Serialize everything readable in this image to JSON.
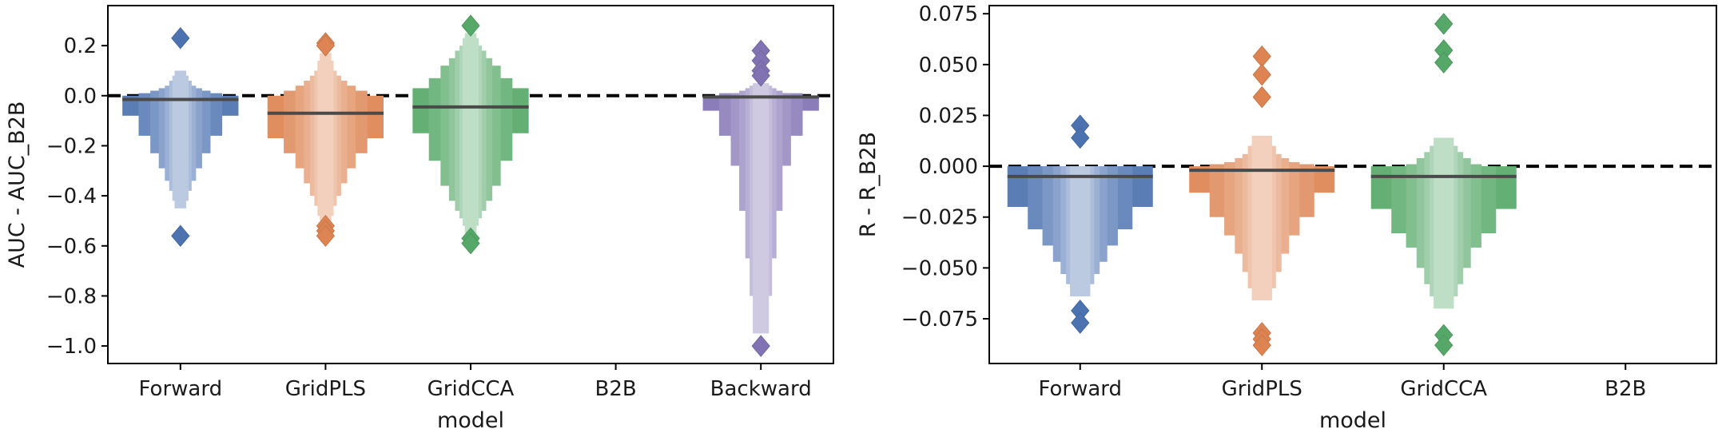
{
  "colors": {
    "Forward": "#4c72b0",
    "GridPLS": "#dd8452",
    "GridCCA": "#55a868",
    "B2B": "#c44e52",
    "Backward": "#8172b3"
  },
  "chart_data": [
    {
      "type": "boxen",
      "ylabel": "AUC - AUC_B2B",
      "xlabel": "model",
      "categories": [
        "Forward",
        "GridPLS",
        "GridCCA",
        "B2B",
        "Backward"
      ],
      "ylim": [
        -1.07,
        0.36
      ],
      "yticks": [
        {
          "value": 0.2,
          "label": "0.2"
        },
        {
          "value": 0.0,
          "label": "0.0"
        },
        {
          "value": -0.2,
          "label": "−0.2"
        },
        {
          "value": -0.4,
          "label": "−0.4"
        },
        {
          "value": -0.6,
          "label": "−0.6"
        },
        {
          "value": -0.8,
          "label": "−0.8"
        },
        {
          "value": -1.0,
          "label": "−1.0"
        }
      ],
      "reference_line": 0,
      "series": [
        {
          "name": "Forward",
          "median": -0.015,
          "levels": [
            [
              -0.08,
              0.0
            ],
            [
              -0.16,
              0.01
            ],
            [
              -0.23,
              0.02
            ],
            [
              -0.29,
              0.03
            ],
            [
              -0.34,
              0.04
            ],
            [
              -0.38,
              0.06
            ],
            [
              -0.42,
              0.08
            ],
            [
              -0.45,
              0.1
            ]
          ],
          "outliers": [
            0.23,
            -0.56
          ]
        },
        {
          "name": "GridPLS",
          "median": -0.07,
          "levels": [
            [
              -0.17,
              0.0
            ],
            [
              -0.23,
              0.02
            ],
            [
              -0.29,
              0.04
            ],
            [
              -0.35,
              0.06
            ],
            [
              -0.4,
              0.08
            ],
            [
              -0.44,
              0.1
            ],
            [
              -0.48,
              0.14
            ],
            [
              -0.5,
              0.17
            ]
          ],
          "outliers": [
            0.21,
            0.2,
            -0.52,
            -0.54,
            -0.56
          ]
        },
        {
          "name": "GridCCA",
          "median": -0.045,
          "levels": [
            [
              -0.15,
              0.03
            ],
            [
              -0.26,
              0.07
            ],
            [
              -0.36,
              0.12
            ],
            [
              -0.42,
              0.15
            ],
            [
              -0.46,
              0.18
            ],
            [
              -0.49,
              0.2
            ],
            [
              -0.52,
              0.23
            ],
            [
              -0.55,
              0.25
            ]
          ],
          "outliers": [
            0.28,
            -0.57,
            -0.59
          ]
        },
        {
          "name": "B2B",
          "median": 0.0,
          "levels": [],
          "outliers": []
        },
        {
          "name": "Backward",
          "median": -0.005,
          "levels": [
            [
              -0.06,
              0.0
            ],
            [
              -0.16,
              0.01
            ],
            [
              -0.28,
              0.01
            ],
            [
              -0.46,
              0.02
            ],
            [
              -0.65,
              0.03
            ],
            [
              -0.8,
              0.04
            ],
            [
              -0.95,
              0.05
            ]
          ],
          "outliers": [
            0.18,
            0.14,
            0.1,
            0.08,
            -1.0
          ]
        }
      ]
    },
    {
      "type": "boxen",
      "ylabel": "R - R_B2B",
      "xlabel": "model",
      "categories": [
        "Forward",
        "GridPLS",
        "GridCCA",
        "B2B"
      ],
      "ylim": [
        -0.097,
        0.079
      ],
      "yticks": [
        {
          "value": 0.075,
          "label": "0.075"
        },
        {
          "value": 0.05,
          "label": "0.050"
        },
        {
          "value": 0.025,
          "label": "0.025"
        },
        {
          "value": 0.0,
          "label": "0.000"
        },
        {
          "value": -0.025,
          "label": "−0.025"
        },
        {
          "value": -0.05,
          "label": "−0.050"
        },
        {
          "value": -0.075,
          "label": "−0.075"
        }
      ],
      "reference_line": 0,
      "series": [
        {
          "name": "Forward",
          "median": -0.005,
          "levels": [
            [
              -0.02,
              0.0
            ],
            [
              -0.031,
              0.0
            ],
            [
              -0.039,
              0.0
            ],
            [
              -0.047,
              0.0
            ],
            [
              -0.053,
              0.0
            ],
            [
              -0.058,
              0.0
            ],
            [
              -0.064,
              0.0
            ]
          ],
          "outliers": [
            0.02,
            0.014,
            -0.071,
            -0.077
          ]
        },
        {
          "name": "GridPLS",
          "median": -0.002,
          "levels": [
            [
              -0.013,
              0.0
            ],
            [
              -0.025,
              0.001
            ],
            [
              -0.034,
              0.002
            ],
            [
              -0.043,
              0.004
            ],
            [
              -0.052,
              0.006
            ],
            [
              -0.06,
              0.01
            ],
            [
              -0.066,
              0.015
            ]
          ],
          "outliers": [
            0.054,
            0.045,
            0.034,
            -0.082,
            -0.085,
            -0.088
          ]
        },
        {
          "name": "GridCCA",
          "median": -0.005,
          "levels": [
            [
              -0.021,
              0.0
            ],
            [
              -0.033,
              0.0
            ],
            [
              -0.04,
              0.001
            ],
            [
              -0.05,
              0.004
            ],
            [
              -0.058,
              0.007
            ],
            [
              -0.064,
              0.01
            ],
            [
              -0.07,
              0.014
            ]
          ],
          "outliers": [
            0.07,
            0.057,
            0.051,
            -0.083,
            -0.088
          ]
        },
        {
          "name": "B2B",
          "median": 0.0,
          "levels": [],
          "outliers": []
        }
      ]
    }
  ]
}
